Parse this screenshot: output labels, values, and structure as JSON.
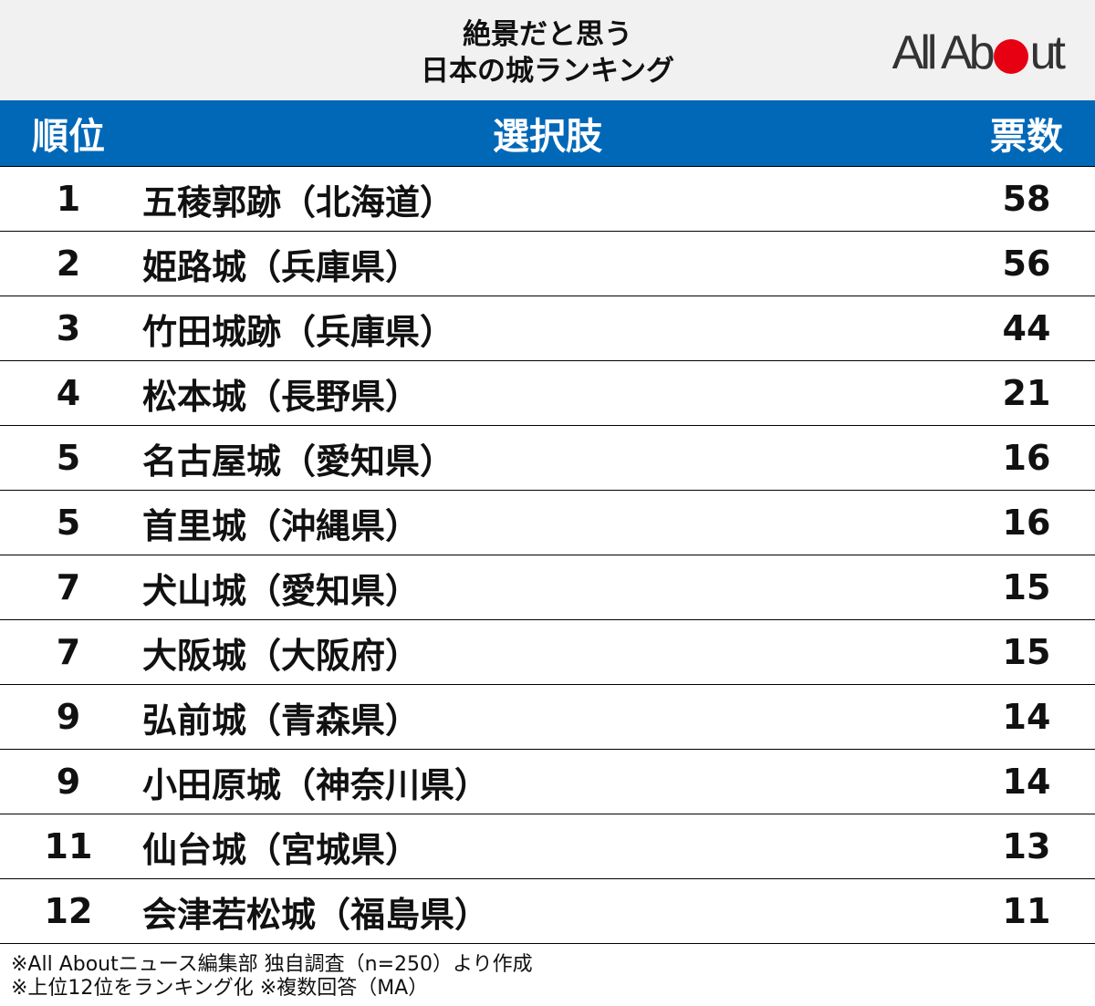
{
  "header": {
    "title_line1": "絶景だと思う",
    "title_line2": "日本の城ランキング",
    "logo_left": "All Ab",
    "logo_right": "ut"
  },
  "table": {
    "columns": [
      "順位",
      "選択肢",
      "票数"
    ],
    "rows": [
      {
        "rank": "1",
        "name": "五稜郭跡（北海道）",
        "votes": "58"
      },
      {
        "rank": "2",
        "name": "姫路城（兵庫県）",
        "votes": "56"
      },
      {
        "rank": "3",
        "name": "竹田城跡（兵庫県）",
        "votes": "44"
      },
      {
        "rank": "4",
        "name": "松本城（長野県）",
        "votes": "21"
      },
      {
        "rank": "5",
        "name": "名古屋城（愛知県）",
        "votes": "16"
      },
      {
        "rank": "5",
        "name": "首里城（沖縄県）",
        "votes": "16"
      },
      {
        "rank": "7",
        "name": "犬山城（愛知県）",
        "votes": "15"
      },
      {
        "rank": "7",
        "name": "大阪城（大阪府）",
        "votes": "15"
      },
      {
        "rank": "9",
        "name": "弘前城（青森県）",
        "votes": "14"
      },
      {
        "rank": "9",
        "name": "小田原城（神奈川県）",
        "votes": "14"
      },
      {
        "rank": "11",
        "name": "仙台城（宮城県）",
        "votes": "13"
      },
      {
        "rank": "12",
        "name": "会津若松城（福島県）",
        "votes": "11"
      }
    ]
  },
  "notes": {
    "line1": "※All Aboutニュース編集部 独自調査（n=250）より作成",
    "line2": "※上位12位をランキング化 ※複数回答（MA）"
  },
  "colors": {
    "header_bg": "#f1f1f1",
    "table_header_bg": "#0068b7",
    "logo_dot": "#e60012"
  }
}
